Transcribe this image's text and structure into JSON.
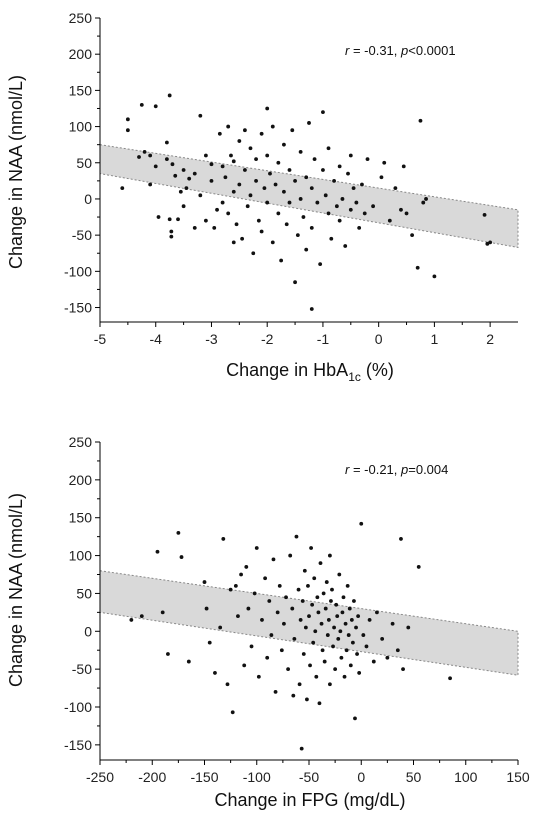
{
  "chart_data": [
    {
      "type": "scatter",
      "xlabel": "Change in HbA1c (%)",
      "xlabel_main": "Change in HbA",
      "xlabel_sub": "1c",
      "xlabel_tail": " (%)",
      "ylabel": "Change in NAA (nmol/L)",
      "xlim": [
        -5,
        2.5
      ],
      "ylim": [
        -170,
        250
      ],
      "xticks": [
        -5,
        -4,
        -3,
        -2,
        -1,
        0,
        1,
        2
      ],
      "yticks": [
        -150,
        -100,
        -50,
        0,
        50,
        100,
        150,
        200,
        250
      ],
      "annotation": {
        "r_label": "r",
        "r_text": " = -0.31, ",
        "p_label": "p",
        "p_text": "<0.0001"
      },
      "ci_band": {
        "x": [
          -5,
          2.5
        ],
        "upper": [
          75,
          -15
        ],
        "lower": [
          35,
          -67
        ]
      },
      "points": [
        [
          -4.6,
          15
        ],
        [
          -4.5,
          95
        ],
        [
          -4.5,
          110
        ],
        [
          -4.3,
          58
        ],
        [
          -4.25,
          130
        ],
        [
          -4.2,
          65
        ],
        [
          -4.1,
          60
        ],
        [
          -4.1,
          20
        ],
        [
          -4.0,
          128
        ],
        [
          -4.0,
          45
        ],
        [
          -3.95,
          -25
        ],
        [
          -3.8,
          78
        ],
        [
          -3.8,
          55
        ],
        [
          -3.75,
          143
        ],
        [
          -3.75,
          -28
        ],
        [
          -3.72,
          -45
        ],
        [
          -3.72,
          -52
        ],
        [
          -3.7,
          48
        ],
        [
          -3.65,
          32
        ],
        [
          -3.6,
          -28
        ],
        [
          -3.55,
          10
        ],
        [
          -3.5,
          40
        ],
        [
          -3.5,
          -10
        ],
        [
          -3.45,
          15
        ],
        [
          -3.4,
          28
        ],
        [
          -3.3,
          35
        ],
        [
          -3.2,
          115
        ],
        [
          -3.2,
          5
        ],
        [
          -3.1,
          60
        ],
        [
          -3.1,
          -30
        ],
        [
          -3.0,
          48
        ],
        [
          -3.0,
          25
        ],
        [
          -2.95,
          -40
        ],
        [
          -2.9,
          -15
        ],
        [
          -2.85,
          90
        ],
        [
          -2.8,
          45
        ],
        [
          -2.8,
          -5
        ],
        [
          -2.75,
          30
        ],
        [
          -2.7,
          100
        ],
        [
          -2.7,
          -20
        ],
        [
          -2.65,
          60
        ],
        [
          -2.6,
          52
        ],
        [
          -2.6,
          10
        ],
        [
          -2.55,
          -35
        ],
        [
          -2.5,
          80
        ],
        [
          -2.5,
          20
        ],
        [
          -2.45,
          -55
        ],
        [
          -2.4,
          95
        ],
        [
          -2.4,
          40
        ],
        [
          -2.35,
          -10
        ],
        [
          -2.3,
          70
        ],
        [
          -2.3,
          5
        ],
        [
          -2.25,
          -75
        ],
        [
          -2.2,
          55
        ],
        [
          -2.2,
          25
        ],
        [
          -2.15,
          -30
        ],
        [
          -2.1,
          90
        ],
        [
          -2.1,
          -45
        ],
        [
          -2.05,
          15
        ],
        [
          -2.0,
          125
        ],
        [
          -2.0,
          60
        ],
        [
          -2.0,
          -5
        ],
        [
          -1.95,
          35
        ],
        [
          -1.9,
          -60
        ],
        [
          -1.9,
          100
        ],
        [
          -1.85,
          20
        ],
        [
          -1.8,
          -20
        ],
        [
          -1.8,
          50
        ],
        [
          -1.75,
          -85
        ],
        [
          -1.7,
          75
        ],
        [
          -1.7,
          10
        ],
        [
          -1.65,
          -35
        ],
        [
          -1.6,
          40
        ],
        [
          -1.6,
          -5
        ],
        [
          -1.55,
          95
        ],
        [
          -1.5,
          -115
        ],
        [
          -1.5,
          25
        ],
        [
          -1.45,
          -50
        ],
        [
          -1.4,
          65
        ],
        [
          -1.4,
          0
        ],
        [
          -1.35,
          -25
        ],
        [
          -1.3,
          30
        ],
        [
          -1.3,
          -70
        ],
        [
          -1.25,
          105
        ],
        [
          -1.2,
          15
        ],
        [
          -1.2,
          -40
        ],
        [
          -1.15,
          55
        ],
        [
          -1.1,
          -5
        ],
        [
          -1.05,
          -90
        ],
        [
          -1.0,
          120
        ],
        [
          -1.0,
          40
        ],
        [
          -0.95,
          5
        ],
        [
          -0.9,
          -20
        ],
        [
          -0.9,
          70
        ],
        [
          -0.85,
          -55
        ],
        [
          -0.8,
          25
        ],
        [
          -0.75,
          -10
        ],
        [
          -0.7,
          45
        ],
        [
          -0.7,
          -30
        ],
        [
          -0.65,
          0
        ],
        [
          -0.6,
          -65
        ],
        [
          -0.55,
          35
        ],
        [
          -0.5,
          60
        ],
        [
          -0.5,
          -15
        ],
        [
          -0.45,
          15
        ],
        [
          -0.4,
          -5
        ],
        [
          -0.35,
          -40
        ],
        [
          -0.3,
          20
        ],
        [
          -0.25,
          -20
        ],
        [
          -0.2,
          55
        ],
        [
          -0.1,
          -10
        ],
        [
          0.05,
          30
        ],
        [
          0.1,
          50
        ],
        [
          0.2,
          -30
        ],
        [
          0.3,
          15
        ],
        [
          0.4,
          -15
        ],
        [
          0.45,
          45
        ],
        [
          0.5,
          -20
        ],
        [
          0.6,
          -50
        ],
        [
          0.7,
          -95
        ],
        [
          0.75,
          108
        ],
        [
          0.8,
          -5
        ],
        [
          0.85,
          0
        ],
        [
          1.0,
          -107
        ],
        [
          1.9,
          -22
        ],
        [
          1.95,
          -62
        ],
        [
          2.0,
          -60
        ],
        [
          -1.2,
          -152
        ],
        [
          -2.6,
          -60
        ],
        [
          -3.3,
          -40
        ]
      ]
    },
    {
      "type": "scatter",
      "xlabel": "Change in FPG (mg/dL)",
      "ylabel": "Change in NAA (nmol/L)",
      "xlim": [
        -250,
        150
      ],
      "ylim": [
        -170,
        250
      ],
      "xticks": [
        -250,
        -200,
        -150,
        -100,
        -50,
        0,
        50,
        100,
        150
      ],
      "yticks": [
        -150,
        -100,
        -50,
        0,
        50,
        100,
        150,
        200,
        250
      ],
      "annotation": {
        "r_label": "r",
        "r_text": " = -0.21, ",
        "p_label": "p",
        "p_text": "=0.004"
      },
      "ci_band": {
        "x": [
          -250,
          150
        ],
        "upper": [
          80,
          0
        ],
        "lower": [
          25,
          -58
        ]
      },
      "points": [
        [
          -220,
          15
        ],
        [
          -210,
          20
        ],
        [
          -195,
          105
        ],
        [
          -190,
          25
        ],
        [
          -185,
          -30
        ],
        [
          -175,
          130
        ],
        [
          -172,
          98
        ],
        [
          -165,
          -40
        ],
        [
          -150,
          65
        ],
        [
          -148,
          30
        ],
        [
          -145,
          -15
        ],
        [
          -140,
          -55
        ],
        [
          -135,
          5
        ],
        [
          -132,
          122
        ],
        [
          -128,
          -70
        ],
        [
          -125,
          55
        ],
        [
          -123,
          -107
        ],
        [
          -120,
          60
        ],
        [
          -118,
          20
        ],
        [
          -115,
          75
        ],
        [
          -112,
          -45
        ],
        [
          -110,
          85
        ],
        [
          -108,
          30
        ],
        [
          -105,
          -20
        ],
        [
          -102,
          50
        ],
        [
          -100,
          110
        ],
        [
          -98,
          -60
        ],
        [
          -95,
          15
        ],
        [
          -92,
          70
        ],
        [
          -90,
          -35
        ],
        [
          -88,
          40
        ],
        [
          -86,
          -5
        ],
        [
          -84,
          95
        ],
        [
          -82,
          -80
        ],
        [
          -80,
          25
        ],
        [
          -78,
          60
        ],
        [
          -76,
          -25
        ],
        [
          -74,
          10
        ],
        [
          -72,
          45
        ],
        [
          -70,
          -50
        ],
        [
          -68,
          100
        ],
        [
          -66,
          30
        ],
        [
          -64,
          -10
        ],
        [
          -62,
          125
        ],
        [
          -60,
          55
        ],
        [
          -59,
          -70
        ],
        [
          -58,
          15
        ],
        [
          -57,
          -155
        ],
        [
          -56,
          40
        ],
        [
          -55,
          -30
        ],
        [
          -54,
          80
        ],
        [
          -53,
          5
        ],
        [
          -52,
          -90
        ],
        [
          -51,
          60
        ],
        [
          -50,
          20
        ],
        [
          -49,
          -45
        ],
        [
          -48,
          110
        ],
        [
          -47,
          35
        ],
        [
          -46,
          -15
        ],
        [
          -45,
          70
        ],
        [
          -44,
          0
        ],
        [
          -43,
          -60
        ],
        [
          -42,
          45
        ],
        [
          -41,
          25
        ],
        [
          -40,
          -95
        ],
        [
          -39,
          90
        ],
        [
          -38,
          10
        ],
        [
          -37,
          -25
        ],
        [
          -36,
          50
        ],
        [
          -35,
          -40
        ],
        [
          -34,
          30
        ],
        [
          -33,
          65
        ],
        [
          -32,
          -5
        ],
        [
          -31,
          15
        ],
        [
          -30,
          -70
        ],
        [
          -29,
          40
        ],
        [
          -28,
          55
        ],
        [
          -27,
          -20
        ],
        [
          -26,
          5
        ],
        [
          -25,
          -50
        ],
        [
          -24,
          35
        ],
        [
          -23,
          20
        ],
        [
          -22,
          -10
        ],
        [
          -21,
          75
        ],
        [
          -20,
          0
        ],
        [
          -19,
          -35
        ],
        [
          -18,
          25
        ],
        [
          -17,
          45
        ],
        [
          -16,
          -60
        ],
        [
          -15,
          10
        ],
        [
          -14,
          -25
        ],
        [
          -13,
          60
        ],
        [
          -12,
          -5
        ],
        [
          -11,
          30
        ],
        [
          -10,
          -45
        ],
        [
          -9,
          15
        ],
        [
          -8,
          -15
        ],
        [
          -7,
          40
        ],
        [
          -6,
          -115
        ],
        [
          -5,
          5
        ],
        [
          -4,
          -30
        ],
        [
          -3,
          20
        ],
        [
          -2,
          -55
        ],
        [
          0,
          142
        ],
        [
          2,
          -5
        ],
        [
          5,
          -20
        ],
        [
          8,
          15
        ],
        [
          12,
          -40
        ],
        [
          15,
          25
        ],
        [
          20,
          -10
        ],
        [
          25,
          -35
        ],
        [
          30,
          10
        ],
        [
          35,
          -25
        ],
        [
          38,
          122
        ],
        [
          40,
          -50
        ],
        [
          45,
          5
        ],
        [
          55,
          85
        ],
        [
          85,
          -62
        ],
        [
          -65,
          -85
        ],
        [
          -30,
          100
        ]
      ]
    }
  ]
}
